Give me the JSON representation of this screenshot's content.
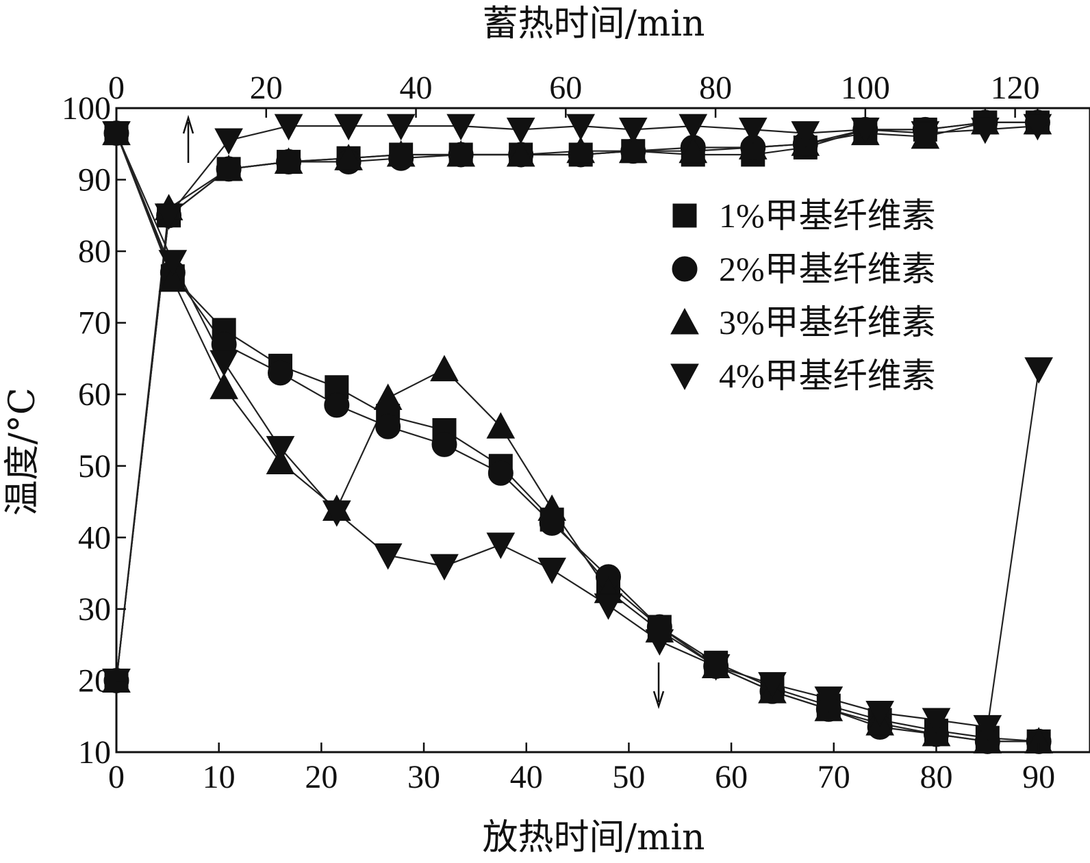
{
  "chart_data": {
    "type": "line",
    "title": "",
    "xlabel_bottom": "放热时间/min",
    "xlabel_top": "蓄热时间/min",
    "ylabel": "温度/°C",
    "x_bottom_range": [
      0,
      95
    ],
    "x_top_range": [
      0,
      130
    ],
    "y_range": [
      10,
      100
    ],
    "x_bottom_ticks": [
      0,
      10,
      20,
      30,
      40,
      50,
      60,
      70,
      80,
      90
    ],
    "x_top_ticks": [
      0,
      20,
      40,
      60,
      80,
      100,
      120
    ],
    "y_ticks": [
      10,
      20,
      30,
      40,
      50,
      60,
      70,
      80,
      90,
      100
    ],
    "grid": false,
    "legend_position": "right",
    "series": [
      {
        "name": "1%甲基纤维素",
        "marker": "square",
        "storage_axis": "top",
        "storage": [
          [
            0,
            20
          ],
          [
            7,
            85
          ],
          [
            15,
            91.5
          ],
          [
            23,
            92.5
          ],
          [
            31,
            93
          ],
          [
            38,
            93.5
          ],
          [
            46,
            93.5
          ],
          [
            54,
            93.5
          ],
          [
            62,
            93.5
          ],
          [
            69,
            94
          ],
          [
            77,
            93.5
          ],
          [
            85,
            93.5
          ],
          [
            92,
            94.5
          ],
          [
            100,
            97
          ],
          [
            108,
            97
          ],
          [
            116,
            98
          ],
          [
            123,
            98
          ]
        ],
        "release_axis": "bottom",
        "release": [
          [
            0,
            96.5
          ],
          [
            5.5,
            76.5
          ],
          [
            10.5,
            69
          ],
          [
            16,
            64
          ],
          [
            21.5,
            61
          ],
          [
            26.5,
            57
          ],
          [
            32,
            55
          ],
          [
            37.5,
            50
          ],
          [
            42.5,
            42.5
          ],
          [
            48,
            33.5
          ],
          [
            53,
            27.5
          ],
          [
            58.5,
            22.5
          ],
          [
            64,
            19
          ],
          [
            69.5,
            16.5
          ],
          [
            74.5,
            14.5
          ],
          [
            80,
            13
          ],
          [
            85,
            12
          ],
          [
            90,
            11.5
          ]
        ]
      },
      {
        "name": "2%甲基纤维素",
        "marker": "circle",
        "storage_axis": "top",
        "storage": [
          [
            0,
            20
          ],
          [
            7,
            85
          ],
          [
            15,
            91.5
          ],
          [
            23,
            92.5
          ],
          [
            31,
            92.5
          ],
          [
            38,
            93
          ],
          [
            46,
            93.5
          ],
          [
            54,
            93.5
          ],
          [
            62,
            93.5
          ],
          [
            69,
            94
          ],
          [
            77,
            94.5
          ],
          [
            85,
            94.5
          ],
          [
            92,
            95
          ],
          [
            100,
            97
          ],
          [
            108,
            97
          ],
          [
            116,
            98
          ],
          [
            123,
            98
          ]
        ],
        "release_axis": "bottom",
        "release": [
          [
            0,
            96.5
          ],
          [
            5.5,
            77
          ],
          [
            10.5,
            67
          ],
          [
            16,
            63
          ],
          [
            21.5,
            58.5
          ],
          [
            26.5,
            55.5
          ],
          [
            32,
            53
          ],
          [
            37.5,
            49
          ],
          [
            42.5,
            42
          ],
          [
            48,
            34.5
          ],
          [
            53,
            27.5
          ],
          [
            58.5,
            22
          ],
          [
            64,
            18.5
          ],
          [
            69.5,
            16
          ],
          [
            74.5,
            13.5
          ],
          [
            80,
            12.5
          ],
          [
            85,
            11.5
          ],
          [
            90,
            11.5
          ]
        ]
      },
      {
        "name": "3%甲基纤维素",
        "marker": "triangle-up",
        "storage_axis": "top",
        "storage": [
          [
            0,
            20
          ],
          [
            7,
            86
          ],
          [
            15,
            91.5
          ],
          [
            23,
            92.5
          ],
          [
            31,
            93
          ],
          [
            38,
            93.5
          ],
          [
            46,
            93.5
          ],
          [
            54,
            93.5
          ],
          [
            62,
            94
          ],
          [
            69,
            94
          ],
          [
            77,
            94
          ],
          [
            85,
            94.5
          ],
          [
            92,
            95
          ],
          [
            100,
            96.5
          ],
          [
            108,
            96
          ],
          [
            116,
            98
          ],
          [
            123,
            98
          ]
        ],
        "release_axis": "bottom",
        "release": [
          [
            0,
            96.5
          ],
          [
            5.5,
            76
          ],
          [
            10.5,
            61
          ],
          [
            16,
            50.5
          ],
          [
            21.5,
            44
          ],
          [
            26.5,
            59.5
          ],
          [
            32,
            63.5
          ],
          [
            37.5,
            55.5
          ],
          [
            42.5,
            44
          ],
          [
            48,
            32.5
          ],
          [
            53,
            27
          ],
          [
            58.5,
            22
          ],
          [
            64,
            18.5
          ],
          [
            69.5,
            16
          ],
          [
            74.5,
            14
          ],
          [
            80,
            12.5
          ],
          [
            85,
            11.5
          ],
          [
            90,
            11.5
          ]
        ]
      },
      {
        "name": "4%甲基纤维素",
        "marker": "triangle-down",
        "storage_axis": "top",
        "storage": [
          [
            0,
            20
          ],
          [
            7,
            85
          ],
          [
            15,
            95.5
          ],
          [
            23,
            97.5
          ],
          [
            31,
            97.5
          ],
          [
            38,
            97.5
          ],
          [
            46,
            97.5
          ],
          [
            54,
            97
          ],
          [
            62,
            97.5
          ],
          [
            69,
            97
          ],
          [
            77,
            97.5
          ],
          [
            85,
            97
          ],
          [
            92,
            96.5
          ],
          [
            100,
            97
          ],
          [
            108,
            96.5
          ],
          [
            116,
            97
          ],
          [
            123,
            97.5
          ]
        ],
        "release_axis": "bottom",
        "release": [
          [
            0,
            96.5
          ],
          [
            5.5,
            78.5
          ],
          [
            10.5,
            64.5
          ],
          [
            16,
            52.5
          ],
          [
            21.5,
            43.5
          ],
          [
            26.5,
            37.5
          ],
          [
            32,
            36
          ],
          [
            37.5,
            39
          ],
          [
            42.5,
            35.5
          ],
          [
            48,
            30.5
          ],
          [
            53,
            25.5
          ],
          [
            58.5,
            22
          ],
          [
            64,
            19.5
          ],
          [
            69.5,
            17.5
          ],
          [
            74.5,
            15.5
          ],
          [
            80,
            14.5
          ],
          [
            85,
            13.5
          ],
          [
            90,
            63.5
          ]
        ]
      }
    ]
  }
}
